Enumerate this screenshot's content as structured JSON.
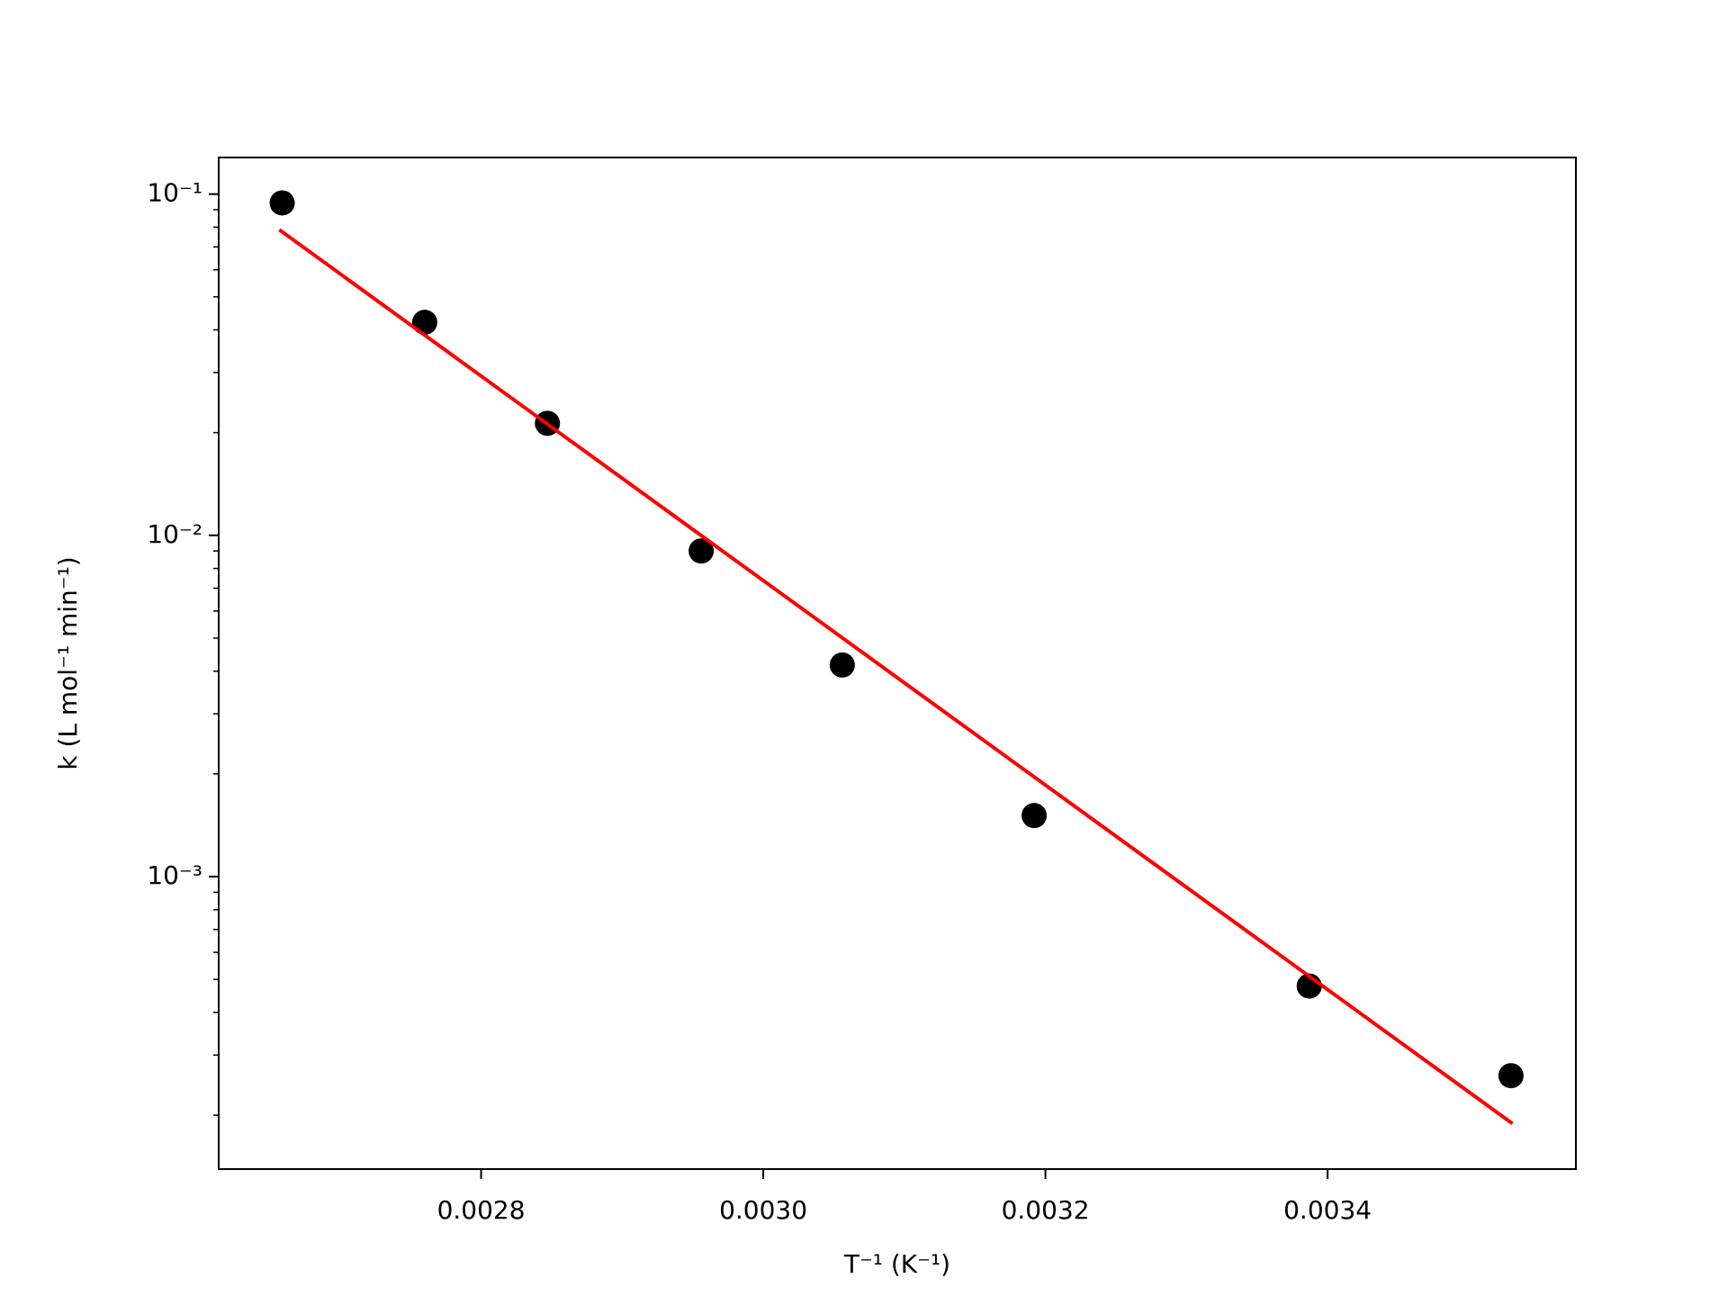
{
  "chart_data": {
    "type": "scatter",
    "xlabel": "T⁻¹ (K⁻¹)",
    "ylabel": "k (L mol⁻¹ min⁻¹)",
    "yscale": "log",
    "xlim": [
      0.002614,
      0.003576
    ],
    "ylim": [
      0.000139,
      0.128
    ],
    "xticks": [
      0.0028,
      {
        "value": 0.003,
        "label": "0.0030"
      },
      0.0032,
      0.0034
    ],
    "yticks": [
      {
        "value": 0.001,
        "label": "10⁻³"
      },
      {
        "value": 0.01,
        "label": "10⁻²"
      },
      {
        "value": 0.1,
        "label": "10⁻¹"
      }
    ],
    "yminorticks": [
      0.0002,
      0.0003,
      0.0004,
      0.0005,
      0.0006,
      0.0007,
      0.0008,
      0.0009,
      0.002,
      0.003,
      0.004,
      0.005,
      0.006,
      0.007,
      0.008,
      0.009,
      0.02,
      0.03,
      0.04,
      0.05,
      0.06,
      0.07,
      0.08,
      0.09
    ],
    "series": [
      {
        "type": "scatter",
        "color": "#000000",
        "x": [
          0.002659,
          0.00276,
          0.002847,
          0.002956,
          0.003056,
          0.003192,
          0.003387,
          0.00353
        ],
        "values": [
          0.0942,
          0.0421,
          0.0213,
          0.009,
          0.00417,
          0.00151,
          0.000478,
          0.000261
        ]
      },
      {
        "type": "line",
        "color": "#ff0000",
        "x": [
          0.002657,
          0.003531
        ],
        "values": [
          0.0786,
          0.000189
        ]
      }
    ]
  }
}
